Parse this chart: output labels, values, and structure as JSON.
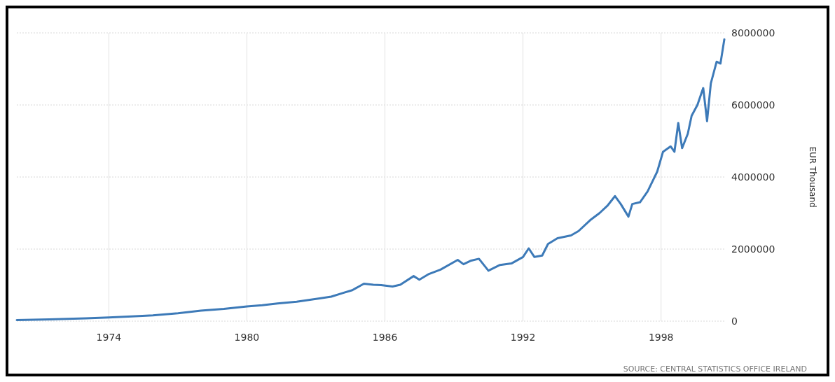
{
  "chart_data": {
    "type": "line",
    "ylabel": "EUR Thousand",
    "annotations": [
      "SOURCE: CENTRAL STATISTICS OFFICE IRELAND"
    ],
    "grid": true,
    "xlim": [
      "1970-01",
      "2000-10"
    ],
    "xticks": [
      "1974",
      "1980",
      "1986",
      "1992",
      "1998"
    ],
    "ylim": [
      0,
      8000000
    ],
    "yticks": [
      0,
      2000000,
      4000000,
      6000000,
      8000000
    ],
    "x": [
      "1970-01",
      "1971-06",
      "1973-01",
      "1974-01",
      "1975-01",
      "1975-12",
      "1977-01",
      "1978-01",
      "1979-01",
      "1980-01",
      "1980-09",
      "1981-05",
      "1982-03",
      "1983-03",
      "1983-09",
      "1984-03",
      "1984-08",
      "1984-10",
      "1985-02",
      "1985-07",
      "1985-11",
      "1986-05",
      "1986-09",
      "1987-04",
      "1987-07",
      "1987-12",
      "1988-06",
      "1989-03",
      "1989-06",
      "1989-10",
      "1990-02",
      "1990-07",
      "1991-01",
      "1991-07",
      "1992-01",
      "1992-04",
      "1992-07",
      "1992-11",
      "1993-02",
      "1993-07",
      "1994-02",
      "1994-06",
      "1994-12",
      "1995-05",
      "1995-09",
      "1996-01",
      "1996-04",
      "1996-08",
      "1996-10",
      "1997-02",
      "1997-06",
      "1997-11",
      "1998-02",
      "1998-06",
      "1998-08",
      "1998-10",
      "1998-12",
      "1999-03",
      "1999-05",
      "1999-08",
      "1999-11",
      "2000-01",
      "2000-03",
      "2000-06",
      "2000-08",
      "2000-10"
    ],
    "series": [
      {
        "color": "#3d7ab8",
        "values": [
          30000,
          50000,
          80000,
          100000,
          130000,
          160000,
          220000,
          290000,
          340000,
          410000,
          440000,
          490000,
          540000,
          630000,
          680000,
          780000,
          860000,
          920000,
          1040000,
          1010000,
          1000000,
          960000,
          1010000,
          1250000,
          1150000,
          1310000,
          1430000,
          1700000,
          1580000,
          1680000,
          1730000,
          1400000,
          1560000,
          1600000,
          1780000,
          2020000,
          1780000,
          1820000,
          2140000,
          2300000,
          2380000,
          2500000,
          2800000,
          3000000,
          3200000,
          3470000,
          3250000,
          2900000,
          3250000,
          3300000,
          3600000,
          4150000,
          4700000,
          4850000,
          4700000,
          5500000,
          4800000,
          5200000,
          5700000,
          6000000,
          6470000,
          5550000,
          6600000,
          7200000,
          7150000,
          7820000
        ]
      }
    ]
  }
}
